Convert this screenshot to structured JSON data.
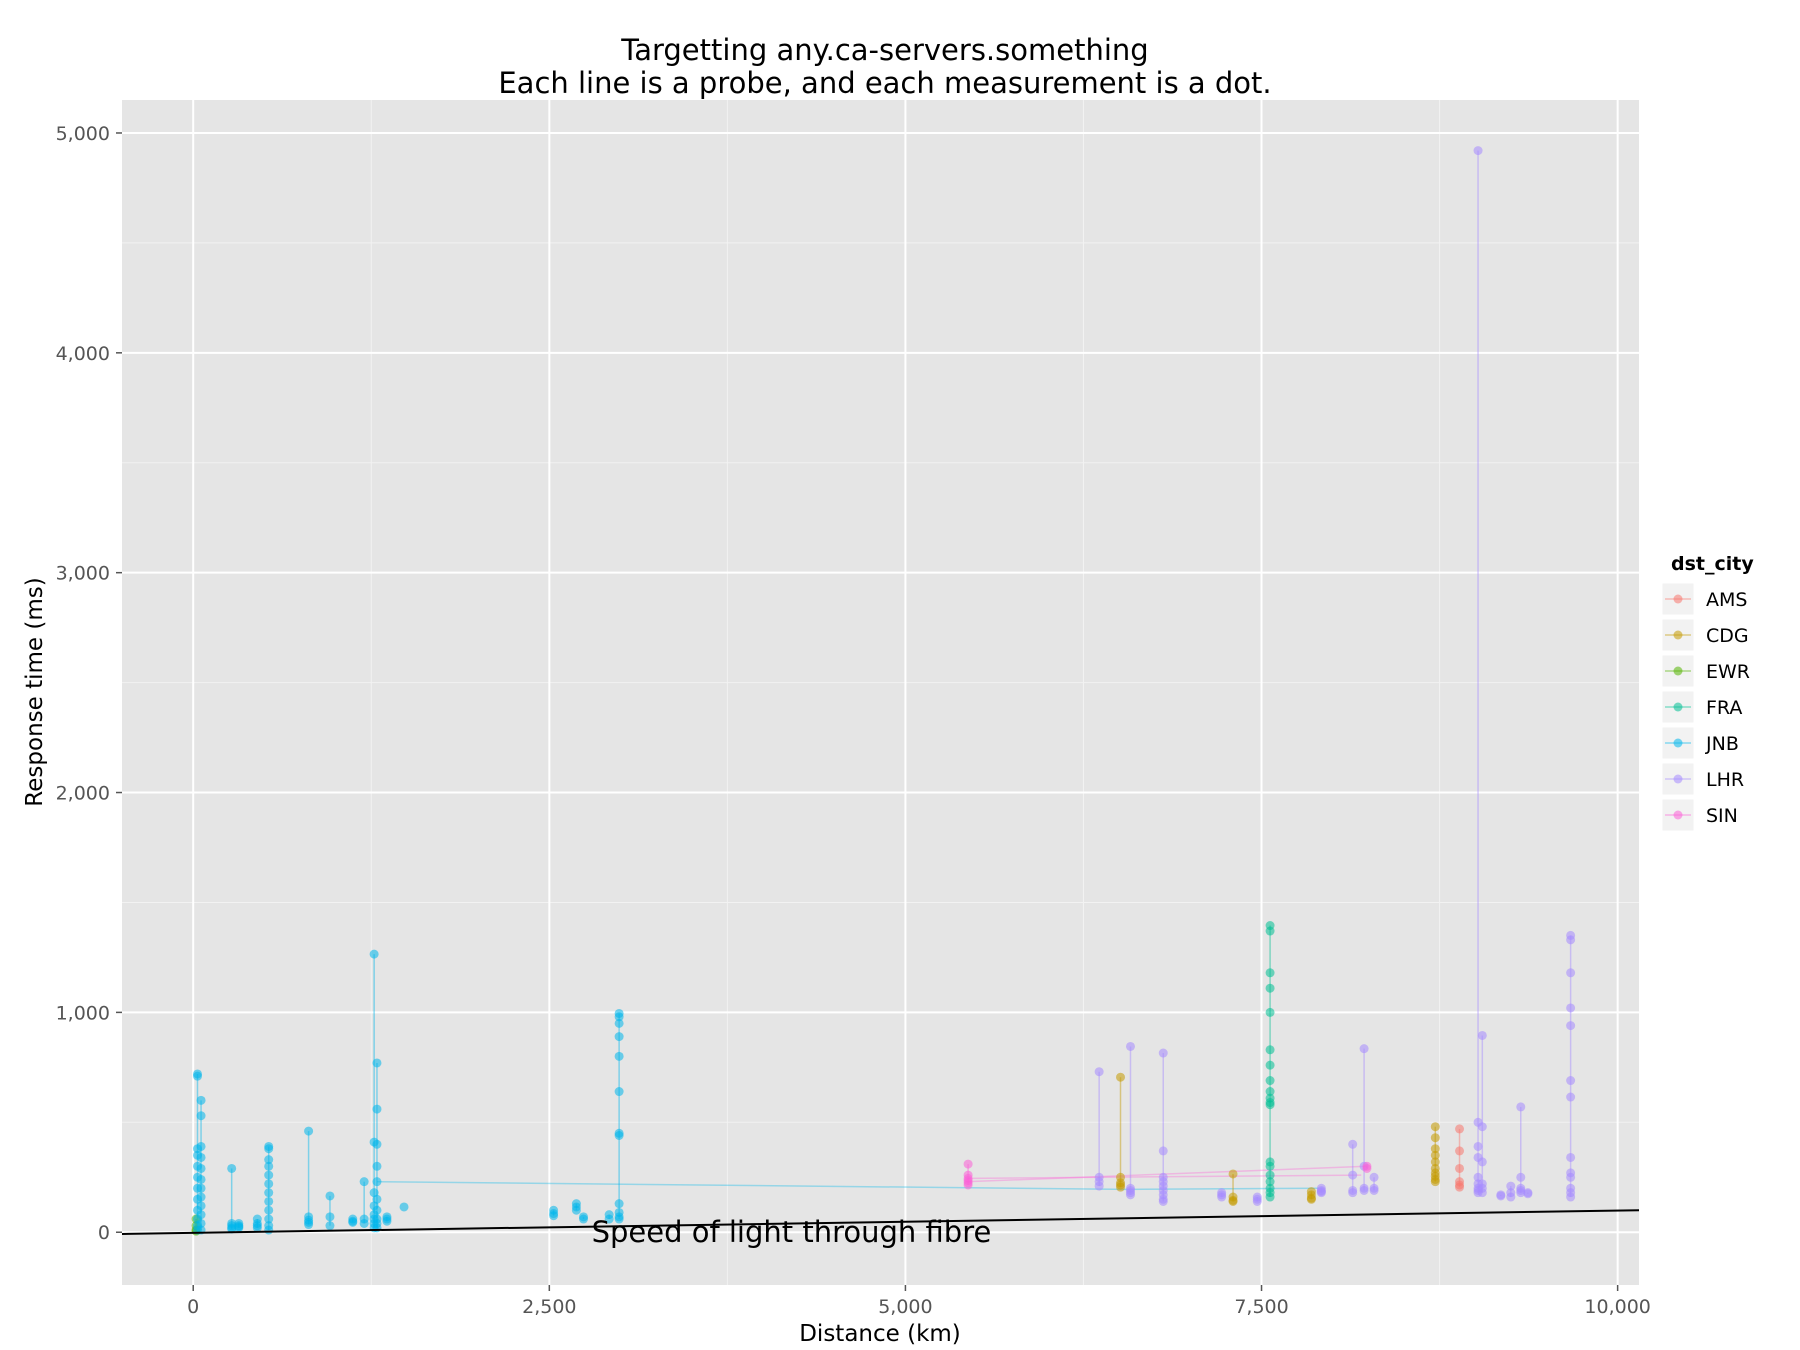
{
  "chart_data": {
    "type": "scatter",
    "title": "Targetting any.ca-servers.something",
    "subtitle": "Each line is a probe, and each measurement is a dot.",
    "xlabel": "Distance (km)",
    "ylabel": "Response time (ms)",
    "xlim": [
      -500,
      10150
    ],
    "ylim": [
      -240,
      5150
    ],
    "x_ticks": [
      0,
      2500,
      5000,
      7500,
      10000
    ],
    "x_tick_labels": [
      "0",
      "2,500",
      "5,000",
      "7,500",
      "10,000"
    ],
    "y_ticks": [
      0,
      1000,
      2000,
      3000,
      4000,
      5000
    ],
    "y_tick_labels": [
      "0",
      "1,000",
      "2,000",
      "3,000",
      "4,000",
      "5,000"
    ],
    "grid": true,
    "legend": {
      "title": "dst_city",
      "position": "right"
    },
    "annotation": {
      "text": "Speed of light through fibre",
      "x": 4200,
      "y": 0,
      "line": {
        "x": [
          -500,
          10150
        ],
        "y": [
          -8,
          100
        ]
      }
    },
    "series": [
      {
        "name": "AMS",
        "color": "#F8766D",
        "probes": [
          {
            "x": 8890,
            "y": [
              470,
              370,
              290,
              230,
              215,
              205
            ]
          }
        ]
      },
      {
        "name": "CDG",
        "color": "#C49A00",
        "probes": [
          {
            "x": 6510,
            "y": [
              705,
              250,
              225,
              215,
              205
            ]
          },
          {
            "x": 7300,
            "y": [
              265,
              160,
              145,
              140
            ]
          },
          {
            "x": 7850,
            "y": [
              185,
              170,
              155,
              150
            ]
          },
          {
            "x": 8720,
            "y": [
              480,
              430,
              380,
              350,
              320,
              290,
              270,
              255,
              240,
              230
            ]
          }
        ]
      },
      {
        "name": "EWR",
        "color": "#53B400",
        "probes": [
          {
            "x": 20,
            "y": [
              60,
              30,
              10,
              5
            ]
          }
        ]
      },
      {
        "name": "FRA",
        "color": "#00C094",
        "probes": [
          {
            "x": 7560,
            "y": [
              1395,
              1370,
              1180,
              1110,
              1000,
              830,
              760,
              690,
              640,
              610,
              590,
              580,
              320,
              300,
              260,
              230,
              200,
              180,
              160
            ]
          }
        ]
      },
      {
        "name": "JNB",
        "color": "#00B6EB",
        "probes": [
          {
            "x": 30,
            "y": [
              720,
              710,
              380,
              350,
              300,
              250,
              200,
              150,
              100,
              60,
              30,
              10
            ]
          },
          {
            "x": 55,
            "y": [
              600,
              530,
              390,
              340,
              290,
              240,
              200,
              160,
              120,
              80,
              40,
              10
            ]
          },
          {
            "x": 270,
            "y": [
              290,
              40,
              30,
              20,
              15
            ]
          },
          {
            "x": 320,
            "y": [
              40,
              30,
              25,
              20
            ]
          },
          {
            "x": 450,
            "y": [
              60,
              40,
              30,
              20
            ]
          },
          {
            "x": 530,
            "y": [
              390,
              380,
              330,
              300,
              260,
              220,
              180,
              140,
              100,
              60,
              30,
              10
            ]
          },
          {
            "x": 810,
            "y": [
              460,
              70,
              55,
              45,
              35
            ]
          },
          {
            "x": 960,
            "y": [
              165,
              70,
              30
            ]
          },
          {
            "x": 1120,
            "y": [
              60,
              50,
              45
            ]
          },
          {
            "x": 1200,
            "y": [
              230,
              60,
              40
            ]
          },
          {
            "x": 1270,
            "y": [
              1265,
              410,
              180,
              120,
              80,
              60,
              40,
              20
            ]
          },
          {
            "x": 1290,
            "y": [
              770,
              560,
              400,
              300,
              230,
              150,
              100,
              60,
              40,
              20
            ]
          },
          {
            "x": 1360,
            "y": [
              70,
              60,
              50
            ]
          },
          {
            "x": 1480,
            "y": [
              115
            ]
          },
          {
            "x": 2530,
            "y": [
              100,
              85,
              75
            ]
          },
          {
            "x": 2690,
            "y": [
              130,
              115,
              100
            ]
          },
          {
            "x": 2740,
            "y": [
              70,
              60
            ]
          },
          {
            "x": 2920,
            "y": [
              80,
              60
            ]
          },
          {
            "x": 2990,
            "y": [
              995,
              980,
              950,
              890,
              800,
              640,
              450,
              440,
              130,
              90,
              70,
              60
            ]
          }
        ],
        "links": [
          {
            "x": [
              1290,
              6550
            ],
            "y": [
              230,
              195
            ]
          },
          {
            "x": [
              6550,
              7900
            ],
            "y": [
              195,
              200
            ]
          }
        ]
      },
      {
        "name": "LHR",
        "color": "#A58AFF",
        "probes": [
          {
            "x": 6360,
            "y": [
              730,
              250,
              230,
              210
            ]
          },
          {
            "x": 6580,
            "y": [
              845,
              200,
              190,
              180,
              170
            ]
          },
          {
            "x": 6810,
            "y": [
              815,
              370,
              250,
              230,
              210,
              190,
              170,
              150,
              140
            ]
          },
          {
            "x": 7220,
            "y": [
              180,
              170,
              160
            ]
          },
          {
            "x": 7470,
            "y": [
              160,
              150,
              140
            ]
          },
          {
            "x": 7920,
            "y": [
              200,
              190,
              185,
              180
            ]
          },
          {
            "x": 8140,
            "y": [
              400,
              260,
              190,
              180
            ]
          },
          {
            "x": 8220,
            "y": [
              835,
              300,
              200,
              190
            ]
          },
          {
            "x": 8290,
            "y": [
              250,
              200,
              190
            ]
          },
          {
            "x": 9020,
            "y": [
              4920,
              500,
              390,
              340,
              250,
              220,
              200,
              190,
              180
            ]
          },
          {
            "x": 9050,
            "y": [
              895,
              480,
              320,
              220,
              200,
              180
            ]
          },
          {
            "x": 9180,
            "y": [
              170,
              165
            ]
          },
          {
            "x": 9250,
            "y": [
              210,
              180,
              160
            ]
          },
          {
            "x": 9320,
            "y": [
              570,
              250,
              200,
              190,
              180
            ]
          },
          {
            "x": 9370,
            "y": [
              180,
              175
            ]
          },
          {
            "x": 9670,
            "y": [
              1350,
              1330,
              1180,
              1020,
              940,
              690,
              615,
              340,
              270,
              250,
              200,
              180,
              160
            ]
          }
        ]
      },
      {
        "name": "SIN",
        "color": "#FB61D7",
        "probes": [
          {
            "x": 5440,
            "y": [
              310,
              260,
              245,
              235,
              225,
              215
            ]
          },
          {
            "x": 8240,
            "y": [
              300,
              290
            ]
          }
        ],
        "links": [
          {
            "x": [
              5440,
              8240
            ],
            "y": [
              230,
              300
            ]
          },
          {
            "x": [
              5440,
              8200
            ],
            "y": [
              245,
              260
            ]
          }
        ]
      }
    ]
  }
}
